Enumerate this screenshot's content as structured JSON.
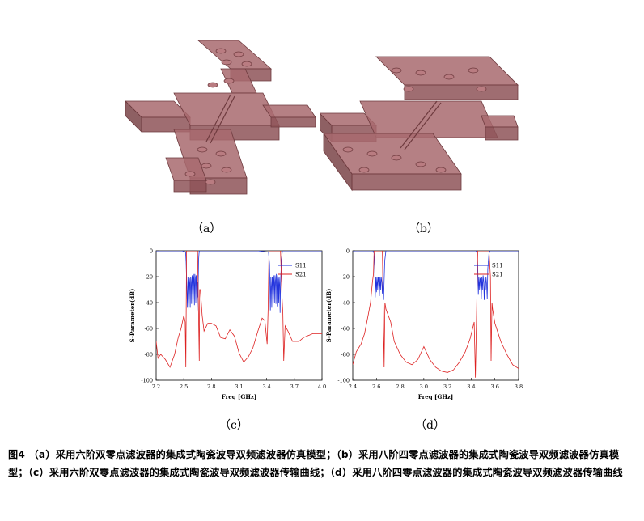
{
  "labels": {
    "a": "（a）",
    "b": "（b）",
    "c": "（c）",
    "d": "（d）"
  },
  "caption": "图4 （a）采用六阶双零点滤波器的集成式陶瓷波导双频滤波器仿真模型；（b）采用八阶四零点滤波器的集成式陶瓷波导双频滤波器仿真模型；（c）采用六阶双零点滤波器的集成式陶瓷波导双频滤波器传输曲线；（d）采用八阶四零点滤波器的集成式陶瓷波导双频滤波器传输曲线",
  "colors": {
    "model_fill": "#a86a6f",
    "model_edge": "#6e3a3e",
    "s11": "#2233dd",
    "s21": "#dd2222"
  },
  "chart_data": [
    {
      "type": "line",
      "panel": "c",
      "xlabel": "Freq [GHz]",
      "ylabel": "S-Parameter(dB)",
      "xlim": [
        2.2,
        4.0
      ],
      "ylim": [
        -100,
        0
      ],
      "xticks": [
        "2.2",
        "2.5",
        "2.8",
        "3.1",
        "3.4",
        "3.7",
        "4.0"
      ],
      "yticks": [
        "0",
        "-20",
        "-40",
        "-60",
        "-80",
        "-100"
      ],
      "legend": "top-right",
      "series": [
        {
          "name": "S11",
          "color": "#2233dd",
          "x": [
            2.2,
            2.48,
            2.52,
            2.525,
            2.53,
            2.54,
            2.545,
            2.55,
            2.555,
            2.56,
            2.565,
            2.57,
            2.575,
            2.58,
            2.585,
            2.59,
            2.595,
            2.6,
            2.605,
            2.61,
            2.615,
            2.62,
            2.625,
            2.63,
            2.635,
            2.64,
            2.645,
            2.65,
            2.655,
            2.66,
            2.665,
            2.67,
            2.72,
            3.3,
            3.42,
            3.43,
            3.435,
            3.44,
            3.445,
            3.45,
            3.455,
            3.46,
            3.465,
            3.47,
            3.475,
            3.48,
            3.485,
            3.49,
            3.495,
            3.5,
            3.505,
            3.51,
            3.515,
            3.52,
            3.525,
            3.53,
            3.535,
            3.54,
            3.545,
            3.55,
            3.56,
            3.57,
            4.0
          ],
          "y": [
            0,
            0,
            -1,
            -8,
            -22,
            -44,
            -20,
            -28,
            -46,
            -21,
            -25,
            -44,
            -20,
            -24,
            -41,
            -19,
            -23,
            -40,
            -18,
            -22,
            -42,
            -18,
            -21,
            -40,
            -19,
            -23,
            -46,
            -24,
            -36,
            -8,
            -2,
            0,
            0,
            0,
            -1,
            -10,
            -28,
            -46,
            -20,
            -27,
            -44,
            -20,
            -25,
            -42,
            -19,
            -24,
            -40,
            -19,
            -23,
            -41,
            -18,
            -22,
            -43,
            -19,
            -22,
            -40,
            -20,
            -26,
            -48,
            -25,
            -7,
            0,
            0
          ]
        },
        {
          "name": "S21",
          "color": "#dd2222",
          "x": [
            2.2,
            2.22,
            2.25,
            2.3,
            2.35,
            2.4,
            2.44,
            2.47,
            2.5,
            2.515,
            2.522,
            2.53,
            2.55,
            2.6,
            2.65,
            2.668,
            2.672,
            2.68,
            2.7,
            2.72,
            2.76,
            2.8,
            2.85,
            2.9,
            2.95,
            3.0,
            3.05,
            3.1,
            3.15,
            3.2,
            3.25,
            3.3,
            3.35,
            3.38,
            3.405,
            3.415,
            3.425,
            3.44,
            3.5,
            3.55,
            3.565,
            3.575,
            3.585,
            3.6,
            3.63,
            3.68,
            3.75,
            3.8,
            3.9,
            4.0
          ],
          "y": [
            -70,
            -83,
            -80,
            -84,
            -90,
            -80,
            -67,
            -60,
            -50,
            -55,
            -90,
            0,
            0,
            0,
            0,
            -85,
            -30,
            -30,
            -50,
            -62,
            -56,
            -56,
            -58,
            -67,
            -68,
            -61,
            -66,
            -79,
            -86,
            -82,
            -75,
            -63,
            -52,
            -54,
            -72,
            -45,
            0,
            0,
            0,
            0,
            -35,
            -48,
            -85,
            -58,
            -62,
            -70,
            -70,
            -67,
            -64,
            -64
          ]
        }
      ]
    },
    {
      "type": "line",
      "panel": "d",
      "xlabel": "Freq [GHz]",
      "ylabel": "S-Parameter(dB)",
      "xlim": [
        2.4,
        3.8
      ],
      "ylim": [
        -100,
        0
      ],
      "xticks": [
        "2.4",
        "2.6",
        "2.8",
        "3.0",
        "3.2",
        "3.4",
        "3.6",
        "3.8"
      ],
      "yticks": [
        "0",
        "-20",
        "-40",
        "-60",
        "-80",
        "-100"
      ],
      "legend": "top-right",
      "series": [
        {
          "name": "S11",
          "color": "#2233dd",
          "x": [
            2.4,
            2.57,
            2.58,
            2.585,
            2.59,
            2.595,
            2.6,
            2.605,
            2.61,
            2.615,
            2.62,
            2.625,
            2.63,
            2.635,
            2.64,
            2.645,
            2.65,
            2.655,
            2.66,
            2.67,
            2.68,
            3.44,
            3.45,
            3.455,
            3.46,
            3.465,
            3.47,
            3.475,
            3.48,
            3.485,
            3.49,
            3.495,
            3.5,
            3.505,
            3.51,
            3.515,
            3.52,
            3.525,
            3.53,
            3.535,
            3.54,
            3.55,
            3.56,
            3.8
          ],
          "y": [
            0,
            0,
            -2,
            -12,
            -36,
            -20,
            -32,
            -20,
            -30,
            -20,
            -24,
            -35,
            -20,
            -30,
            -20,
            -24,
            -33,
            -20,
            -38,
            -8,
            0,
            0,
            -2,
            -12,
            -34,
            -20,
            -30,
            -21,
            -25,
            -37,
            -20,
            -30,
            -19,
            -24,
            -38,
            -21,
            -30,
            -20,
            -26,
            -37,
            -14,
            -2,
            0,
            0
          ]
        },
        {
          "name": "S21",
          "color": "#dd2222",
          "x": [
            2.4,
            2.43,
            2.47,
            2.5,
            2.53,
            2.55,
            2.565,
            2.575,
            2.58,
            2.6,
            2.65,
            2.665,
            2.672,
            2.68,
            2.72,
            2.75,
            2.8,
            2.85,
            2.9,
            2.95,
            3.0,
            3.05,
            3.1,
            3.15,
            3.2,
            3.25,
            3.3,
            3.35,
            3.39,
            3.425,
            3.435,
            3.445,
            3.455,
            3.5,
            3.55,
            3.562,
            3.568,
            3.575,
            3.58,
            3.6,
            3.65,
            3.7,
            3.75,
            3.8
          ],
          "y": [
            -88,
            -78,
            -72,
            -64,
            -50,
            -40,
            -25,
            -18,
            0,
            0,
            0,
            -90,
            -40,
            -45,
            -55,
            -70,
            -80,
            -86,
            -88,
            -84,
            -74,
            -84,
            -90,
            -93,
            -94,
            -92,
            -86,
            -78,
            -68,
            -55,
            -98,
            -50,
            0,
            0,
            0,
            -20,
            -85,
            -40,
            -45,
            -56,
            -70,
            -80,
            -88,
            -91
          ]
        }
      ]
    }
  ]
}
